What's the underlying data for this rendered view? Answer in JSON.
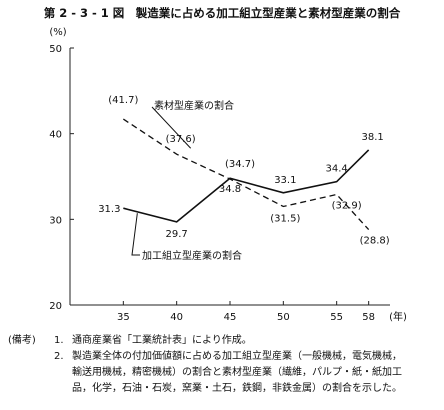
{
  "figure": {
    "title": "第 2 - 3 - 1 図　製造業に占める加工組立型産業と素材型産業の割合"
  },
  "chart_data": {
    "type": "line",
    "title": "第 2 - 3 - 1 図　製造業に占める加工組立型産業と素材型産業の割合",
    "x_ticks": [
      "35",
      "40",
      "45",
      "50",
      "55",
      "58"
    ],
    "x_unit": "(年)",
    "y_unit": "(%)",
    "y_ticks": [
      "20",
      "30",
      "40",
      "50"
    ],
    "ylim": [
      20,
      50
    ],
    "grid": false,
    "series": [
      {
        "name": "素材型産業の割合",
        "style": "dashed",
        "x": [
          35,
          40,
          45,
          50,
          55,
          58
        ],
        "values": [
          41.7,
          37.6,
          34.7,
          31.5,
          32.9,
          28.8
        ],
        "labels": [
          "(41.7)",
          "(37.6)",
          "(34.7)",
          "(31.5)",
          "(32.9)",
          "(28.8)"
        ]
      },
      {
        "name": "加工組立型産業の割合",
        "style": "solid",
        "x": [
          35,
          40,
          45,
          50,
          55,
          58
        ],
        "values": [
          31.3,
          29.7,
          34.8,
          33.1,
          34.4,
          38.1
        ],
        "labels": [
          "31.3",
          "29.7",
          "34.8",
          "33.1",
          "34.4",
          "38.1"
        ]
      }
    ]
  },
  "notes": {
    "head": "(備考)",
    "items": [
      {
        "num": "1.",
        "lines": [
          "通商産業省「工業統計表」により作成。"
        ]
      },
      {
        "num": "2.",
        "lines": [
          "製造業全体の付加価値額に占める加工組立型産業（一般機械，電気機械，",
          "輸送用機械，精密機械）の割合と素材型産業（繊維，パルプ・紙・紙加工",
          "品，化学，石油・石炭，窯業・土石，鉄鋼，非鉄金属）の割合を示した。"
        ]
      }
    ]
  }
}
